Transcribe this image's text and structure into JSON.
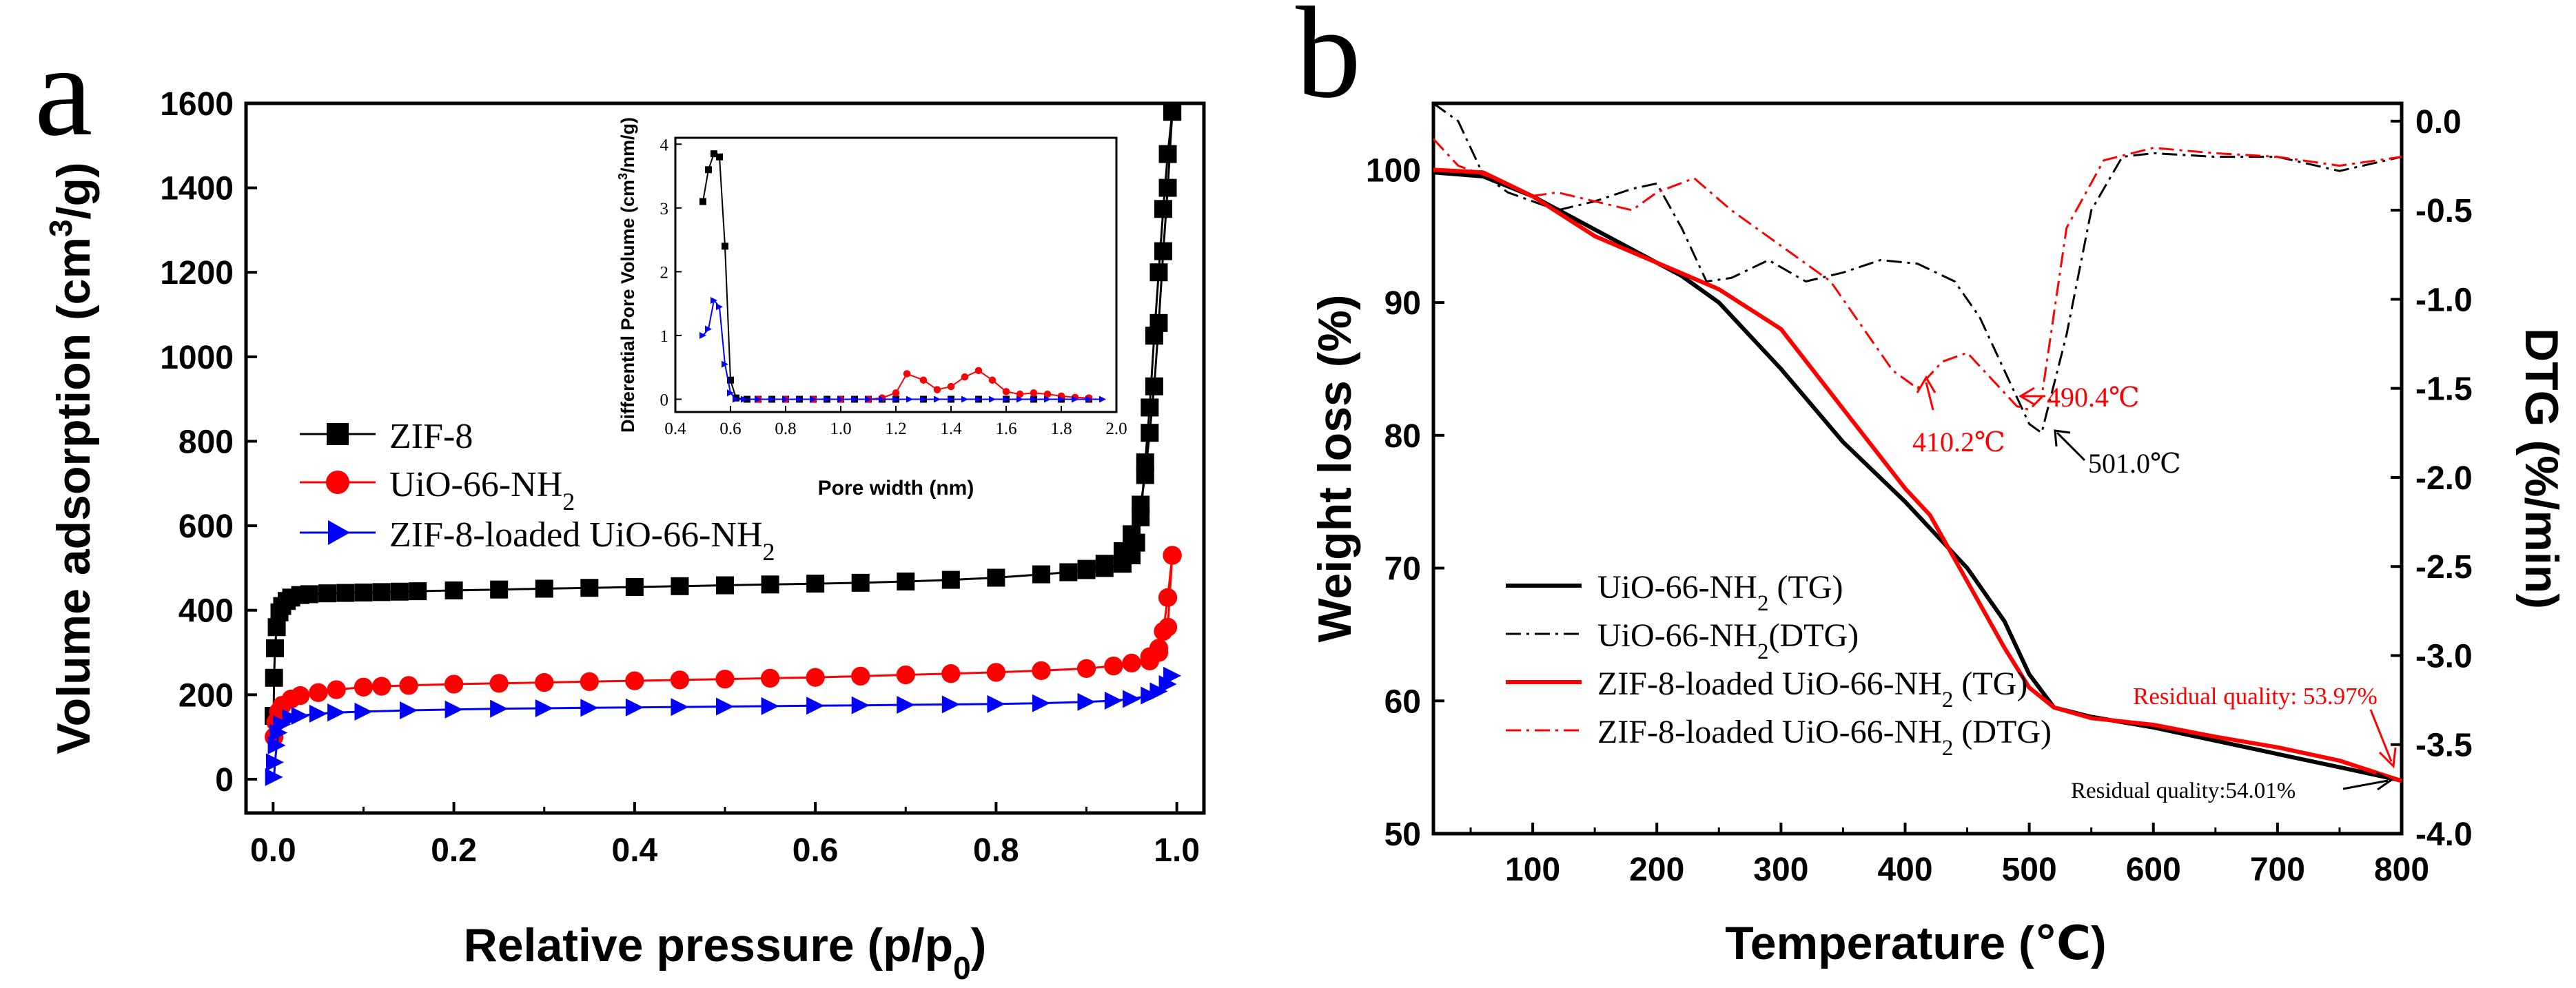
{
  "chart_data": [
    {
      "panel_label": "a",
      "type": "scatter",
      "xlabel": "Relative pressure (p/p",
      "xlabel_sub": "0",
      "xlabel_end": ")",
      "ylabel": "Volume adsorption (cm",
      "ylabel_sup": "3",
      "ylabel_end": "/g)",
      "xlim": [
        -0.03,
        1.03
      ],
      "ylim": [
        -80,
        1600
      ],
      "xticks": [
        0.0,
        0.2,
        0.4,
        0.6,
        0.8,
        1.0
      ],
      "xtick_labels": [
        "0.0",
        "0.2",
        "0.4",
        "0.6",
        "0.8",
        "1.0"
      ],
      "yticks": [
        0,
        200,
        400,
        600,
        800,
        1000,
        1200,
        1400,
        1600
      ],
      "ytick_labels": [
        "0",
        "200",
        "400",
        "600",
        "800",
        "1000",
        "1200",
        "1400",
        "1600"
      ],
      "legend_position": "middle-left",
      "series": [
        {
          "name": "ZIF-8",
          "color": "#000000",
          "marker": "square",
          "adsorption": {
            "x": [
              0.0005,
              0.001,
              0.002,
              0.004,
              0.007,
              0.01,
              0.015,
              0.02,
              0.03,
              0.04,
              0.06,
              0.08,
              0.1,
              0.12,
              0.14,
              0.16,
              0.2,
              0.25,
              0.3,
              0.35,
              0.4,
              0.45,
              0.5,
              0.55,
              0.6,
              0.65,
              0.7,
              0.75,
              0.8,
              0.85,
              0.88,
              0.9,
              0.92,
              0.94,
              0.95,
              0.96,
              0.965,
              0.97,
              0.975,
              0.98,
              0.985,
              0.99,
              0.995
            ],
            "y": [
              150,
              240,
              310,
              360,
              395,
              410,
              422,
              430,
              436,
              438,
              440,
              441,
              442,
              443,
              444,
              445,
              447,
              449,
              451,
              453,
              455,
              457,
              459,
              461,
              463,
              465,
              468,
              472,
              477,
              485,
              490,
              498,
              510,
              540,
              580,
              650,
              720,
              820,
              930,
              1080,
              1250,
              1400,
              1580
            ]
          },
          "desorption": {
            "x": [
              0.995,
              0.99,
              0.985,
              0.98,
              0.975,
              0.97,
              0.965,
              0.96,
              0.955,
              0.95,
              0.94,
              0.92,
              0.9
            ],
            "y": [
              1580,
              1480,
              1350,
              1200,
              1050,
              880,
              750,
              620,
              560,
              530,
              510,
              500,
              495
            ]
          }
        },
        {
          "name": "UiO-66-NH",
          "name_sub": "2",
          "color": "#ff0000",
          "marker": "circle",
          "adsorption": {
            "x": [
              0.001,
              0.003,
              0.006,
              0.01,
              0.02,
              0.03,
              0.05,
              0.07,
              0.1,
              0.12,
              0.15,
              0.2,
              0.25,
              0.3,
              0.35,
              0.4,
              0.45,
              0.5,
              0.55,
              0.6,
              0.65,
              0.7,
              0.75,
              0.8,
              0.85,
              0.9,
              0.93,
              0.95,
              0.97,
              0.98,
              0.99,
              0.995
            ],
            "y": [
              100,
              135,
              160,
              175,
              190,
              198,
              205,
              212,
              218,
              220,
              222,
              225,
              227,
              229,
              231,
              233,
              235,
              237,
              239,
              241,
              244,
              247,
              250,
              253,
              257,
              262,
              268,
              275,
              290,
              310,
              360,
              530
            ]
          },
          "desorption": {
            "x": [
              0.995,
              0.99,
              0.985,
              0.98,
              0.97
            ],
            "y": [
              530,
              430,
              350,
              300,
              280
            ]
          }
        },
        {
          "name": "ZIF-8-loaded UiO-66-NH",
          "name_sub": "2",
          "color": "#0000ff",
          "marker": "triangle-right",
          "adsorption": {
            "x": [
              0.001,
              0.002,
              0.004,
              0.006,
              0.01,
              0.02,
              0.03,
              0.05,
              0.07,
              0.1,
              0.15,
              0.2,
              0.25,
              0.3,
              0.35,
              0.4,
              0.45,
              0.5,
              0.55,
              0.6,
              0.65,
              0.7,
              0.75,
              0.8,
              0.85,
              0.9,
              0.93,
              0.95,
              0.97,
              0.98,
              0.99,
              0.995
            ],
            "y": [
              5,
              40,
              80,
              110,
              130,
              145,
              150,
              155,
              158,
              160,
              163,
              165,
              167,
              168,
              169,
              170,
              171,
              172,
              173,
              174,
              175,
              176,
              177,
              178,
              180,
              183,
              186,
              190,
              198,
              208,
              225,
              245
            ]
          },
          "desorption": {
            "x": [],
            "y": []
          }
        }
      ],
      "inset": {
        "type": "line",
        "xlabel": "Pore width (nm)",
        "ylabel": "Differential Pore Volume (cm",
        "ylabel_sup": "3",
        "ylabel_end": "/nm/g)",
        "xlim": [
          0.4,
          2.0
        ],
        "ylim": [
          -0.2,
          4.1
        ],
        "xticks": [
          0.4,
          0.6,
          0.8,
          1.0,
          1.2,
          1.4,
          1.6,
          1.8,
          2.0
        ],
        "xtick_labels": [
          "0.4",
          "0.6",
          "0.8",
          "1.0",
          "1.2",
          "1.4",
          "1.6",
          "1.8",
          "2.0"
        ],
        "yticks": [
          0,
          1,
          2,
          3,
          4
        ],
        "ytick_labels": [
          "0",
          "1",
          "2",
          "3",
          "4"
        ],
        "series": [
          {
            "name": "ZIF-8",
            "color": "#000000",
            "marker": "square",
            "x": [
              0.5,
              0.52,
              0.54,
              0.56,
              0.58,
              0.6,
              0.62,
              0.66,
              0.7,
              0.75,
              0.8,
              0.85,
              0.9,
              0.95,
              1.0,
              1.05,
              1.1,
              1.15,
              1.2,
              1.3,
              1.4,
              1.5,
              1.6,
              1.7,
              1.8,
              1.9
            ],
            "y": [
              3.1,
              3.6,
              3.85,
              3.8,
              2.4,
              0.3,
              0.02,
              0,
              0,
              0,
              0,
              0,
              0,
              0,
              0,
              0,
              0,
              0,
              0,
              0,
              0,
              0,
              0,
              0,
              0,
              0
            ]
          },
          {
            "name": "UiO-66-NH2",
            "color": "#ff0000",
            "marker": "circle",
            "x": [
              0.7,
              0.8,
              0.9,
              1.0,
              1.1,
              1.15,
              1.2,
              1.24,
              1.3,
              1.35,
              1.4,
              1.45,
              1.5,
              1.55,
              1.6,
              1.65,
              1.7,
              1.75,
              1.8,
              1.85,
              1.9
            ],
            "y": [
              0,
              0,
              0,
              0,
              0,
              0.02,
              0.1,
              0.4,
              0.3,
              0.15,
              0.2,
              0.35,
              0.45,
              0.3,
              0.12,
              0.08,
              0.1,
              0.08,
              0.05,
              0.03,
              0.02
            ]
          },
          {
            "name": "ZIF-8-loaded UiO-66-NH2",
            "color": "#0000ff",
            "marker": "triangle-right",
            "x": [
              0.5,
              0.52,
              0.54,
              0.56,
              0.58,
              0.6,
              0.62,
              0.65,
              0.7,
              0.75,
              0.8,
              0.85,
              0.9,
              0.95,
              1.0,
              1.05,
              1.1,
              1.15,
              1.2,
              1.25,
              1.3,
              1.35,
              1.4,
              1.45,
              1.5,
              1.55,
              1.6,
              1.65,
              1.7,
              1.75,
              1.8,
              1.85,
              1.9,
              1.95
            ],
            "y": [
              1.0,
              1.1,
              1.55,
              1.45,
              0.55,
              0.1,
              0,
              0,
              0,
              0,
              0,
              0,
              0,
              0,
              0,
              0,
              0,
              0,
              0,
              0,
              0,
              0,
              0,
              0,
              0,
              0,
              0,
              0,
              0,
              0,
              0,
              0,
              0,
              0
            ]
          }
        ]
      }
    },
    {
      "panel_label": "b",
      "type": "line",
      "xlabel": "Temperature (℃)",
      "ylabel": "Weight loss (%)",
      "ylabel_right": "DTG (%/min)",
      "xlim": [
        20,
        800
      ],
      "ylim": [
        50,
        105
      ],
      "ylim_right": [
        -4.0,
        0.1
      ],
      "xticks": [
        100,
        200,
        300,
        400,
        500,
        600,
        700,
        800
      ],
      "xtick_labels": [
        "100",
        "200",
        "300",
        "400",
        "500",
        "600",
        "700",
        "800"
      ],
      "yticks": [
        50,
        60,
        70,
        80,
        90,
        100
      ],
      "ytick_labels": [
        "50",
        "60",
        "70",
        "80",
        "90",
        "100"
      ],
      "yticks_right": [
        0.0,
        -0.5,
        -1.0,
        -1.5,
        -2.0,
        -2.5,
        -3.0,
        -3.5,
        -4.0
      ],
      "ytick_labels_right": [
        "0.0",
        "-0.5",
        "-1.0",
        "-1.5",
        "-2.0",
        "-2.5",
        "-3.0",
        "-3.5",
        "-4.0"
      ],
      "legend_position": "bottom-left",
      "series": [
        {
          "name": "UiO-66-NH",
          "name_sub": "2",
          "name_end": " (TG)",
          "color": "#000000",
          "style": "solid",
          "axis": "left",
          "x": [
            20,
            60,
            100,
            150,
            200,
            220,
            250,
            300,
            350,
            400,
            450,
            480,
            500,
            520,
            550,
            600,
            650,
            700,
            750,
            800
          ],
          "y": [
            99.8,
            99.5,
            98,
            95.5,
            93,
            92,
            90,
            85,
            79.5,
            75,
            70,
            66,
            62,
            59.5,
            58.8,
            58,
            57,
            56,
            55,
            54
          ]
        },
        {
          "name": "UiO-66-NH",
          "name_sub": "2",
          "name_end": "(DTG)",
          "color": "#000000",
          "style": "dashdot",
          "axis": "right",
          "x": [
            20,
            40,
            60,
            80,
            100,
            120,
            150,
            180,
            200,
            220,
            240,
            260,
            290,
            320,
            350,
            380,
            410,
            440,
            460,
            480,
            500,
            510,
            530,
            550,
            575,
            600,
            650,
            700,
            750,
            800
          ],
          "y": [
            0.1,
            0.0,
            -0.3,
            -0.4,
            -0.45,
            -0.5,
            -0.45,
            -0.38,
            -0.35,
            -0.6,
            -0.9,
            -0.88,
            -0.78,
            -0.9,
            -0.85,
            -0.78,
            -0.8,
            -0.9,
            -1.1,
            -1.4,
            -1.7,
            -1.75,
            -1.2,
            -0.5,
            -0.2,
            -0.18,
            -0.2,
            -0.2,
            -0.28,
            -0.2
          ]
        },
        {
          "name": "ZIF-8-loaded UiO-66-NH",
          "name_sub": "2",
          "name_end": " (TG)",
          "color": "#ff0000",
          "style": "solid",
          "axis": "left",
          "x": [
            20,
            60,
            100,
            150,
            200,
            250,
            300,
            350,
            400,
            420,
            450,
            480,
            500,
            520,
            550,
            600,
            650,
            700,
            750,
            800
          ],
          "y": [
            100,
            99.8,
            98,
            95,
            93,
            91,
            88,
            82,
            76,
            74,
            69,
            64,
            61,
            59.5,
            58.7,
            58.2,
            57.3,
            56.5,
            55.5,
            53.97
          ]
        },
        {
          "name": "ZIF-8-loaded UiO-66-NH",
          "name_sub": "2",
          "name_end": " (DTG)",
          "color": "#ff0000",
          "style": "dashdot",
          "axis": "right",
          "x": [
            20,
            40,
            60,
            80,
            100,
            120,
            150,
            180,
            200,
            230,
            260,
            300,
            340,
            370,
            390,
            410,
            430,
            450,
            470,
            490,
            500,
            510,
            530,
            560,
            600,
            650,
            700,
            750,
            800
          ],
          "y": [
            -0.1,
            -0.25,
            -0.3,
            -0.35,
            -0.42,
            -0.4,
            -0.45,
            -0.5,
            -0.4,
            -0.32,
            -0.5,
            -0.7,
            -0.9,
            -1.2,
            -1.4,
            -1.5,
            -1.35,
            -1.3,
            -1.45,
            -1.6,
            -1.62,
            -1.55,
            -0.6,
            -0.22,
            -0.15,
            -0.18,
            -0.2,
            -0.25,
            -0.2
          ]
        }
      ],
      "annotations": {
        "a1": {
          "text": "410.2℃",
          "color": "#ff0000",
          "x": 410.2,
          "y": -1.5,
          "axis": "right"
        },
        "a2": {
          "text": "490.4℃",
          "color": "#ff0000",
          "x": 490.4,
          "y": -1.6,
          "axis": "right"
        },
        "a3": {
          "text": "501.0℃",
          "color": "#000000",
          "x": 501.0,
          "y": -1.75,
          "axis": "right"
        },
        "a4": {
          "text": "Residual quality: 53.97%",
          "color": "#ff0000",
          "x": 800,
          "y": 53.97,
          "axis": "left"
        },
        "a5": {
          "text": "Residual quality:54.01%",
          "color": "#000000",
          "x": 800,
          "y": 54.01,
          "axis": "left"
        }
      }
    }
  ]
}
